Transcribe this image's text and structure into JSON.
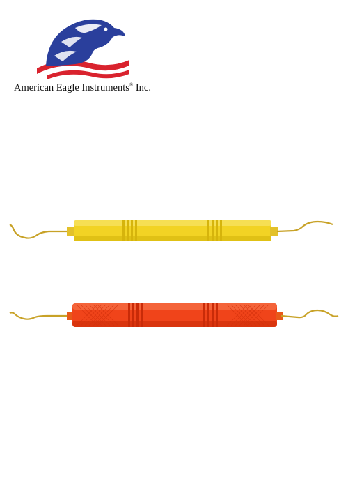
{
  "brand": {
    "name": "American Eagle Instruments",
    "registered_mark": "®",
    "suffix": " Inc.",
    "logo_icon": "eagle-flag-logo",
    "colors": {
      "blue": "#2a3f9c",
      "red": "#d9232e"
    }
  },
  "products": [
    {
      "id": "yellow",
      "handle_color": "#f2d324",
      "handle_dark": "#d9b90f",
      "tip_color": "#c8a227"
    },
    {
      "id": "red",
      "handle_color": "#f0441a",
      "handle_dark": "#cf2f0a",
      "tip_color": "#c8a227"
    }
  ]
}
